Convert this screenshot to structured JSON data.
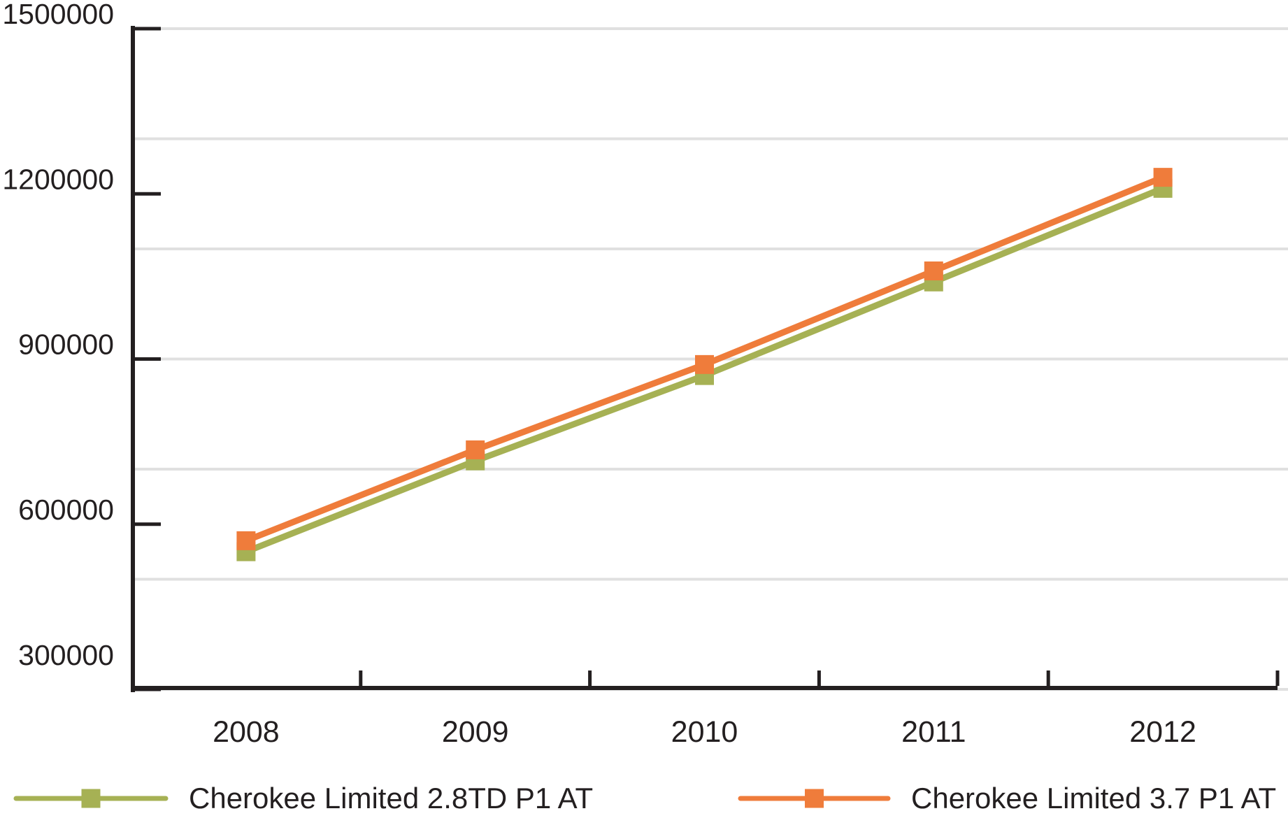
{
  "chart_data": {
    "type": "line",
    "title": "",
    "xlabel": "",
    "ylabel": "",
    "categories": [
      "2008",
      "2009",
      "2010",
      "2011",
      "2012"
    ],
    "series": [
      {
        "name": "Cherokee Limited 2.8TD P1 AT",
        "color": "#A6B154",
        "marker": "square",
        "values": [
          550000,
          715000,
          870000,
          1040000,
          1210000
        ]
      },
      {
        "name": "Cherokee Limited 3.7 P1 AT",
        "color": "#EF7C3B",
        "marker": "square",
        "values": [
          570000,
          735000,
          890000,
          1060000,
          1230000
        ]
      }
    ],
    "ylim": [
      300000,
      1500000
    ],
    "y_tick_step": 300000,
    "y_grid_step": 200000,
    "y_tick_labels": [
      "300000",
      "600000",
      "900000",
      "1200000",
      "1500000"
    ],
    "grid": true,
    "legend_position": "bottom"
  },
  "colors": {
    "axis": "#231F20",
    "text": "#231F20",
    "grid": "#E0E0E0",
    "series_green": "#A6B154",
    "series_orange": "#EF7C3B",
    "background": "#FFFFFF"
  }
}
